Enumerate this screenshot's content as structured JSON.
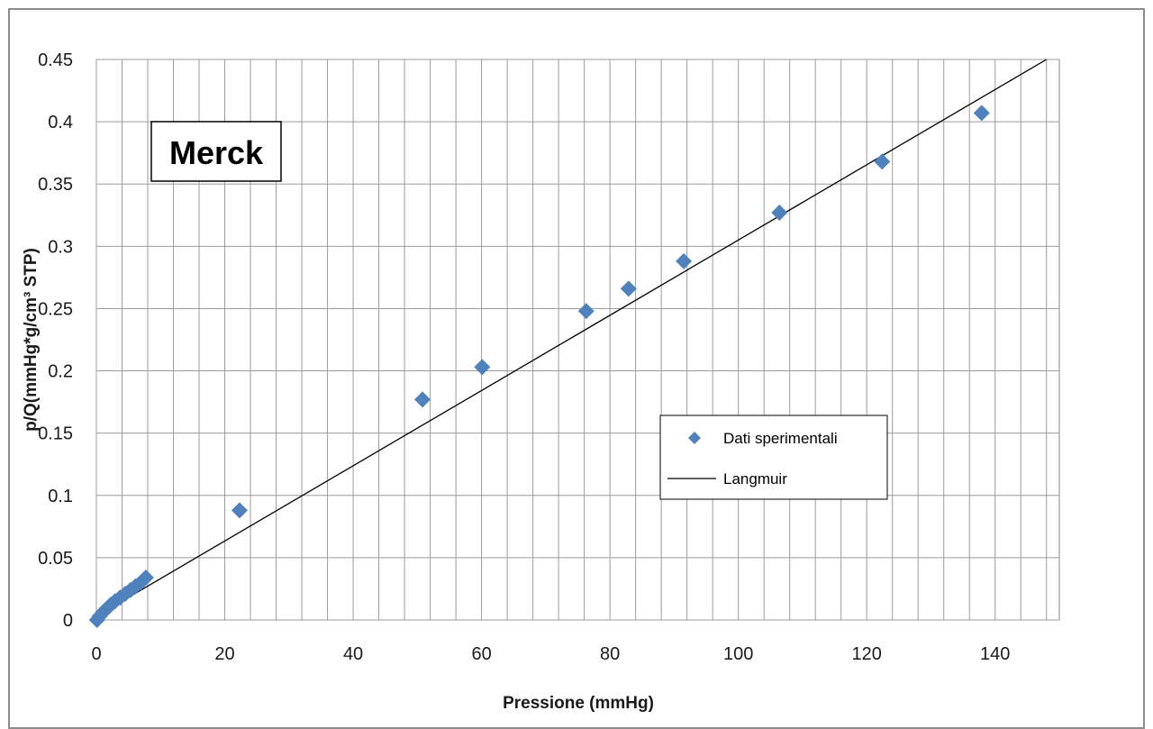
{
  "chart_data": {
    "type": "scatter",
    "title": "",
    "annotation": "Merck",
    "xlabel": "Pressione (mmHg)",
    "ylabel": "p/Q(mmHg*g/cm³ STP)",
    "xlim": [
      0,
      150
    ],
    "ylim": [
      0,
      0.45
    ],
    "x_ticks": [
      0,
      20,
      40,
      60,
      80,
      100,
      120,
      140
    ],
    "y_ticks": [
      0,
      0.05,
      0.1,
      0.15,
      0.2,
      0.25,
      0.3,
      0.35,
      0.4,
      0.45
    ],
    "x_tick_labels": [
      "0",
      "20",
      "40",
      "60",
      "80",
      "100",
      "120",
      "140"
    ],
    "y_tick_labels": [
      "0",
      "0.05",
      "0.1",
      "0.15",
      "0.2",
      "0.25",
      "0.3",
      "0.35",
      "0.4",
      "0.45"
    ],
    "grid": true,
    "legend_position": "right",
    "series": [
      {
        "name": "Dati sperimentali",
        "kind": "markers",
        "marker": "diamond",
        "color": "#4f81bd",
        "points": [
          {
            "x": 0.1,
            "y": 0.0
          },
          {
            "x": 0.5,
            "y": 0.003
          },
          {
            "x": 1.0,
            "y": 0.006
          },
          {
            "x": 1.6,
            "y": 0.009
          },
          {
            "x": 2.2,
            "y": 0.012
          },
          {
            "x": 2.9,
            "y": 0.015
          },
          {
            "x": 3.7,
            "y": 0.018
          },
          {
            "x": 4.5,
            "y": 0.021
          },
          {
            "x": 5.3,
            "y": 0.024
          },
          {
            "x": 6.1,
            "y": 0.027
          },
          {
            "x": 6.9,
            "y": 0.03
          },
          {
            "x": 7.7,
            "y": 0.034
          },
          {
            "x": 22.3,
            "y": 0.088
          },
          {
            "x": 50.8,
            "y": 0.177
          },
          {
            "x": 60.1,
            "y": 0.203
          },
          {
            "x": 76.3,
            "y": 0.248
          },
          {
            "x": 82.9,
            "y": 0.266
          },
          {
            "x": 91.5,
            "y": 0.288
          },
          {
            "x": 106.4,
            "y": 0.327
          },
          {
            "x": 122.4,
            "y": 0.368
          },
          {
            "x": 137.9,
            "y": 0.407
          }
        ]
      },
      {
        "name": "Langmuir",
        "kind": "line",
        "color": "#000000",
        "points": [
          {
            "x": 0,
            "y": 0.003
          },
          {
            "x": 148,
            "y": 0.45
          }
        ]
      }
    ]
  }
}
